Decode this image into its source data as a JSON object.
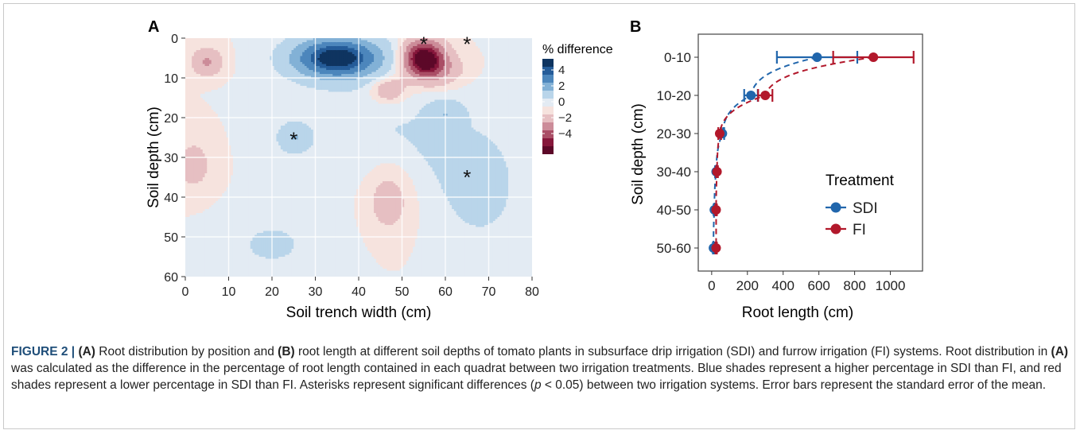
{
  "chart_data": [
    {
      "panel": "A",
      "type": "heatmap",
      "xlabel": "Soil trench width (cm)",
      "ylabel": "Soil depth (cm)",
      "xlim": [
        0,
        80
      ],
      "ylim": [
        60,
        0
      ],
      "x_ticks": [
        "0",
        "10",
        "20",
        "30",
        "40",
        "50",
        "60",
        "70",
        "80"
      ],
      "y_ticks": [
        "0",
        "10",
        "20",
        "30",
        "40",
        "50",
        "60"
      ],
      "legend_title": "% difference",
      "legend_labels": [
        "4",
        "2",
        "0",
        "−2",
        "−4"
      ],
      "legend_placement": "right",
      "color_scale": [
        "#0f3460",
        "#255c99",
        "#4c86bc",
        "#82b1d6",
        "#b9d5ea",
        "#e3ebf3",
        "#f6e3de",
        "#e6bfc2",
        "#cc8c99",
        "#aa4e66",
        "#86173b",
        "#5c0828"
      ],
      "features": [
        {
          "x": 35,
          "y": 5,
          "value": 5.0,
          "sx": 10,
          "sy": 5
        },
        {
          "x": 55,
          "y": 5,
          "value": -5.0,
          "sx": 4.6,
          "sy": 4.4
        },
        {
          "x": 5,
          "y": 6,
          "value": -1.6,
          "sx": 3.4,
          "sy": 3.4
        },
        {
          "x": 58,
          "y": 8,
          "value": -1.4,
          "sx": 6,
          "sy": 4
        },
        {
          "x": 47,
          "y": 13,
          "value": -1.4,
          "sx": 4,
          "sy": 3.2
        },
        {
          "x": 25,
          "y": 25,
          "value": 1.3,
          "sx": 3.2,
          "sy": 3.2
        },
        {
          "x": 60,
          "y": 19,
          "value": 1.1,
          "sx": 3.8,
          "sy": 3
        },
        {
          "x": 47,
          "y": 25,
          "value": 0.55,
          "sx": 26,
          "sy": 13
        },
        {
          "x": 20,
          "y": 52,
          "value": 0.55,
          "sx": 16,
          "sy": 11
        },
        {
          "x": 68,
          "y": 40,
          "value": 0.6,
          "sx": 12,
          "sy": 16
        },
        {
          "x": 47,
          "y": 40,
          "value": -0.95,
          "sx": 6,
          "sy": 10
        },
        {
          "x": 2,
          "y": 32,
          "value": -0.7,
          "sx": 6,
          "sy": 9
        }
      ],
      "significant_marks": [
        {
          "x": 25,
          "y": 24.5,
          "label": "*"
        },
        {
          "x": 55,
          "y": 0.5,
          "label": "*"
        },
        {
          "x": 65,
          "y": 0.5,
          "label": "*"
        },
        {
          "x": 65,
          "y": 34,
          "label": "*"
        }
      ]
    },
    {
      "panel": "B",
      "type": "scatter",
      "xlabel": "Root length (cm)",
      "ylabel": "Soil depth (cm)",
      "xlim": [
        -75,
        1180
      ],
      "x_ticks": [
        0,
        200,
        400,
        600,
        800,
        1000
      ],
      "categories": [
        "0-10",
        "10-20",
        "20-30",
        "30-40",
        "40-50",
        "50-60"
      ],
      "legend_title": "Treatment",
      "legend_placement": "right",
      "grid": false,
      "series": [
        {
          "name": "SDI",
          "color": "#2166ac",
          "values": [
            590,
            220,
            60,
            25,
            15,
            10
          ],
          "errors": [
            225,
            38,
            10,
            6,
            4,
            3
          ]
        },
        {
          "name": "FI",
          "color": "#b2182b",
          "values": [
            905,
            300,
            45,
            30,
            25,
            25
          ],
          "errors": [
            225,
            40,
            8,
            5,
            4,
            4
          ]
        }
      ]
    }
  ],
  "caption": {
    "figure_label": "FIGURE 2 | ",
    "parts": [
      {
        "bold": true,
        "text": "(A)"
      },
      {
        "bold": false,
        "text": " Root distribution by position and "
      },
      {
        "bold": true,
        "text": "(B)"
      },
      {
        "bold": false,
        "text": " root length at different soil depths of tomato plants in subsurface drip irrigation (SDI) and furrow irrigation (FI) systems. Root distribution in "
      },
      {
        "bold": true,
        "text": "(A)"
      },
      {
        "bold": false,
        "text": " was calculated as the difference in the percentage of root length contained in each quadrat between two irrigation treatments. Blue shades represent a higher percentage in SDI than FI, and red shades represent a lower percentage in SDI than FI. Asterisks represent significant differences ("
      },
      {
        "italic": true,
        "text": "p"
      },
      {
        "bold": false,
        "text": " < 0.05) between two irrigation systems. Error bars represent the standard error of the mean."
      }
    ]
  }
}
